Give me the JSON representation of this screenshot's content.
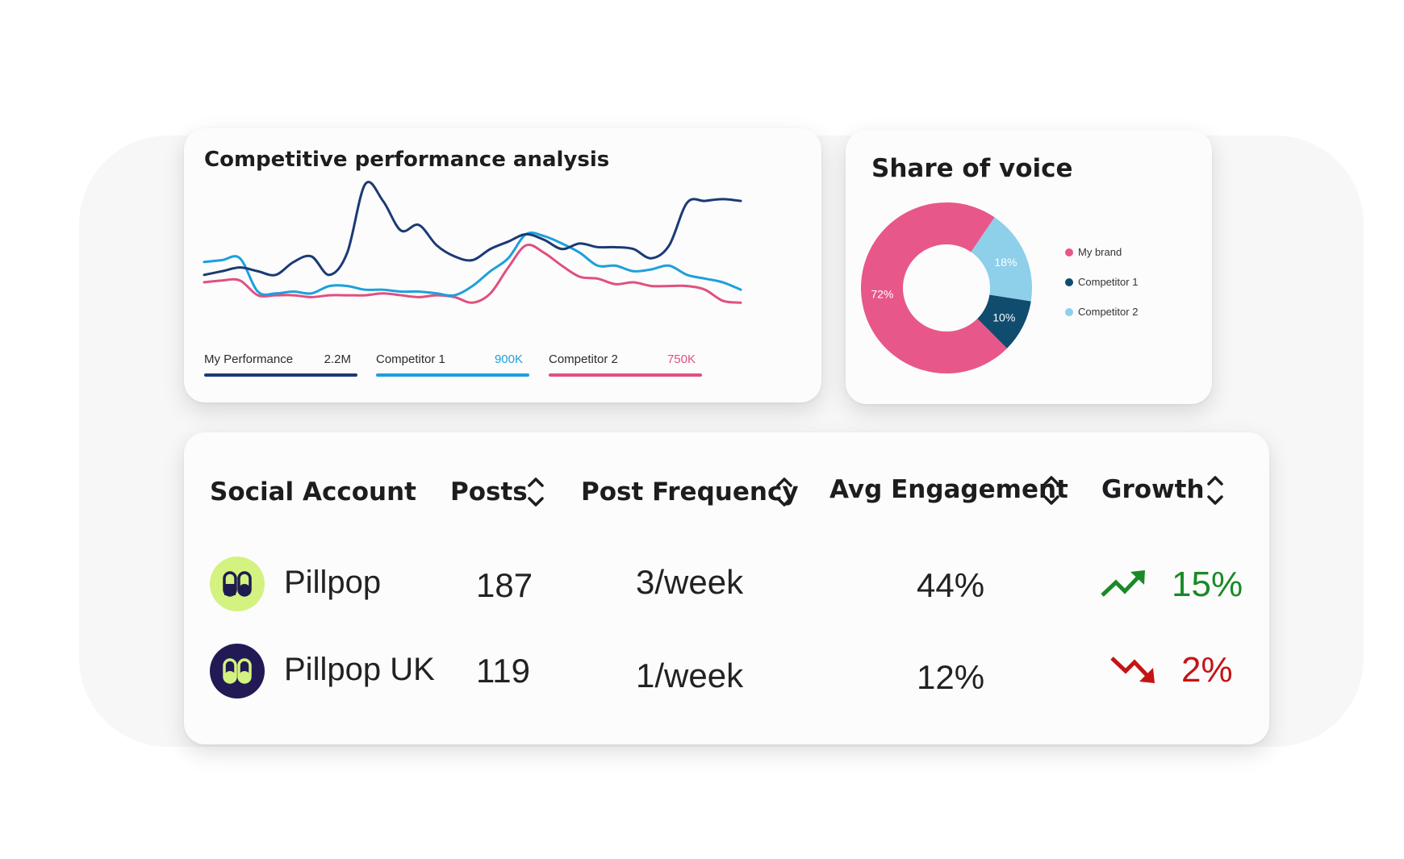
{
  "performance": {
    "title": "Competitive performance analysis",
    "legend": [
      {
        "name": "My Performance",
        "value": "2.2M",
        "color": "#1b3a75"
      },
      {
        "name": "Competitor 1",
        "value": "900K",
        "color": "#1e9fdc"
      },
      {
        "name": "Competitor 2",
        "value": "750K",
        "color": "#e0507f"
      }
    ]
  },
  "chart_data": [
    {
      "type": "line",
      "title": "Competitive performance analysis",
      "x": [
        0,
        1,
        2,
        3,
        4,
        5,
        6,
        7,
        8,
        9,
        10,
        11,
        12,
        13,
        14,
        15,
        16,
        17,
        18,
        19,
        20,
        21,
        22,
        23,
        24,
        25,
        26,
        27,
        28,
        29,
        30
      ],
      "series": [
        {
          "name": "My Performance",
          "color": "#1b3a75",
          "values": [
            46,
            48,
            50,
            48,
            46,
            53,
            56,
            46,
            58,
            95,
            86,
            70,
            73,
            62,
            56,
            54,
            60,
            64,
            68,
            65,
            60,
            63,
            61,
            61,
            60,
            55,
            62,
            85,
            86,
            87,
            86
          ]
        },
        {
          "name": "Competitor 1",
          "color": "#1e9fdc",
          "values": [
            53,
            54,
            55,
            37,
            36,
            37,
            36,
            40,
            40,
            38,
            38,
            37,
            37,
            36,
            35,
            40,
            48,
            55,
            68,
            67,
            63,
            58,
            51,
            51,
            48,
            49,
            51,
            46,
            44,
            42,
            38
          ]
        },
        {
          "name": "Competitor 2",
          "color": "#e0507f",
          "values": [
            42,
            43,
            43,
            35,
            35,
            35,
            34,
            35,
            35,
            35,
            36,
            35,
            34,
            35,
            34,
            31,
            36,
            50,
            62,
            58,
            51,
            45,
            44,
            41,
            42,
            40,
            40,
            40,
            38,
            32,
            31
          ]
        }
      ]
    },
    {
      "type": "pie",
      "title": "Share of voice",
      "categories": [
        "My brand",
        "Competitor 1",
        "Competitor 2"
      ],
      "values": [
        72,
        10,
        18
      ],
      "colors": [
        "#e8578a",
        "#0f4c6e",
        "#8ecfea"
      ],
      "labels": [
        "72%",
        "10%",
        "18%"
      ]
    }
  ],
  "sov": {
    "title": "Share of voice",
    "legend": [
      {
        "name": "My brand",
        "color": "#e8578a"
      },
      {
        "name": "Competitor 1",
        "color": "#0f4c6e"
      },
      {
        "name": "Competitor 2",
        "color": "#8ecfea"
      }
    ]
  },
  "table": {
    "headers": [
      "Social Account",
      "Posts",
      "Post Frequency",
      "Avg Engagement",
      "Growth"
    ],
    "rows": [
      {
        "account": "Pillpop",
        "posts": "187",
        "frequency": "3/week",
        "engagement": "44%",
        "growth": "15%",
        "trend": "up",
        "avatar_color": "#d4f27f",
        "icon_color": "#1e1c4f",
        "growth_color": "#1a8a26"
      },
      {
        "account": "Pillpop UK",
        "posts": "119",
        "frequency": "1/week",
        "engagement": "12%",
        "growth": "2%",
        "trend": "down",
        "avatar_color": "#211a55",
        "icon_color": "#d4f27f",
        "growth_color": "#c41414"
      }
    ],
    "icons": {
      "sort": "sort-chevrons-icon",
      "up": "trending-up-icon",
      "down": "trending-down-icon",
      "avatar": "capsule-pair-icon"
    }
  }
}
